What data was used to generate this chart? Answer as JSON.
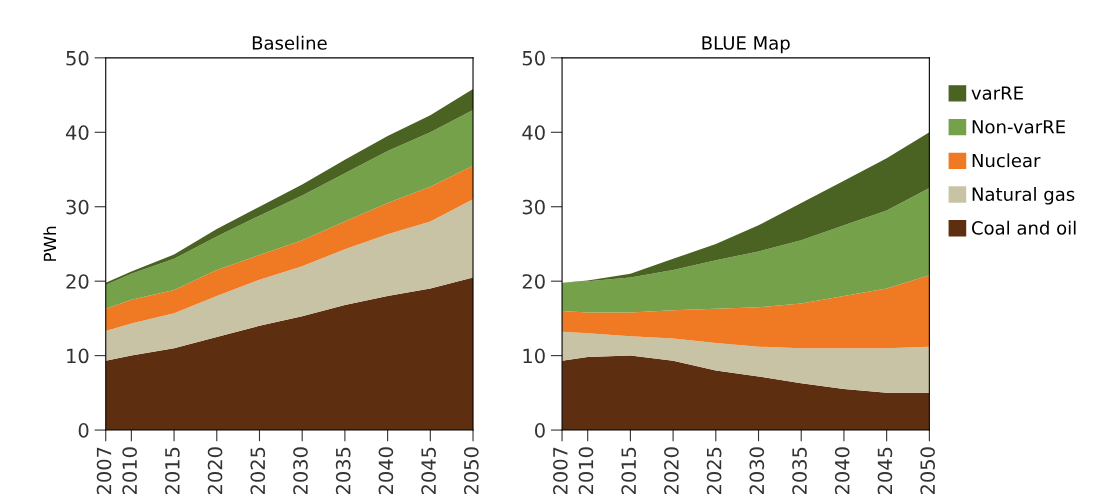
{
  "chart_data": [
    {
      "type": "area",
      "stacked": true,
      "title": "Baseline",
      "ylabel": "PWh",
      "x": [
        2007,
        2010,
        2015,
        2020,
        2025,
        2030,
        2035,
        2040,
        2045,
        2050
      ],
      "xlim": [
        2007,
        2050
      ],
      "xticks": [
        2007,
        2010,
        2015,
        2020,
        2025,
        2030,
        2035,
        2040,
        2045,
        2050
      ],
      "ylim": [
        0,
        50
      ],
      "yticks": [
        0,
        10,
        20,
        30,
        40,
        50
      ],
      "grid": false,
      "legend": false,
      "series": [
        {
          "color": "#5e2e10",
          "values": [
            9.3,
            10,
            11,
            12.5,
            14,
            15.3,
            16.8,
            18,
            19,
            20.5
          ]
        },
        {
          "color": "#c9c3a5",
          "values": [
            4,
            4.3,
            4.7,
            5.5,
            6.2,
            6.7,
            7.5,
            8.3,
            9,
            10.5
          ]
        },
        {
          "color": "#f07a23",
          "values": [
            3,
            3.2,
            3.1,
            3.5,
            3.3,
            3.5,
            3.7,
            4.2,
            4.7,
            4.5
          ]
        },
        {
          "color": "#76a14b",
          "values": [
            3.2,
            3.5,
            4.2,
            4.5,
            5.3,
            6,
            6.5,
            7,
            7.3,
            7.5
          ]
        },
        {
          "color": "#4a6322",
          "values": [
            0.3,
            0.3,
            0.6,
            1,
            1.2,
            1.5,
            1.8,
            2,
            2.3,
            2.8
          ]
        }
      ]
    },
    {
      "type": "area",
      "stacked": true,
      "title": "BLUE Map",
      "x": [
        2007,
        2010,
        2015,
        2020,
        2025,
        2030,
        2035,
        2040,
        2045,
        2050
      ],
      "xlim": [
        2007,
        2050
      ],
      "xticks": [
        2007,
        2010,
        2015,
        2020,
        2025,
        2030,
        2035,
        2040,
        2045,
        2050
      ],
      "ylim": [
        0,
        50
      ],
      "yticks": [
        0,
        10,
        20,
        30,
        40,
        50
      ],
      "grid": false,
      "legend": "right",
      "series": [
        {
          "name": "Coal and oil",
          "color": "#5e2e10",
          "values": [
            9.3,
            9.8,
            10,
            9.3,
            8,
            7.2,
            6.3,
            5.5,
            5,
            5
          ]
        },
        {
          "name": "Natural gas",
          "color": "#c9c3a5",
          "values": [
            3.9,
            3.2,
            2.6,
            3,
            3.7,
            4,
            4.7,
            5.5,
            6,
            6.2
          ]
        },
        {
          "name": "Nuclear",
          "color": "#f07a23",
          "values": [
            2.8,
            2.8,
            3.2,
            3.8,
            4.6,
            5.3,
            6,
            7,
            8,
            9.6
          ]
        },
        {
          "name": "Non-varRE",
          "color": "#76a14b",
          "values": [
            3.8,
            4.2,
            4.7,
            5.4,
            6.5,
            7.5,
            8.5,
            9.5,
            10.5,
            11.7
          ]
        },
        {
          "name": "varRE",
          "color": "#4a6322",
          "values": [
            0,
            0.1,
            0.5,
            1.5,
            2.2,
            3.5,
            5,
            6,
            7,
            7.5
          ]
        }
      ]
    }
  ]
}
